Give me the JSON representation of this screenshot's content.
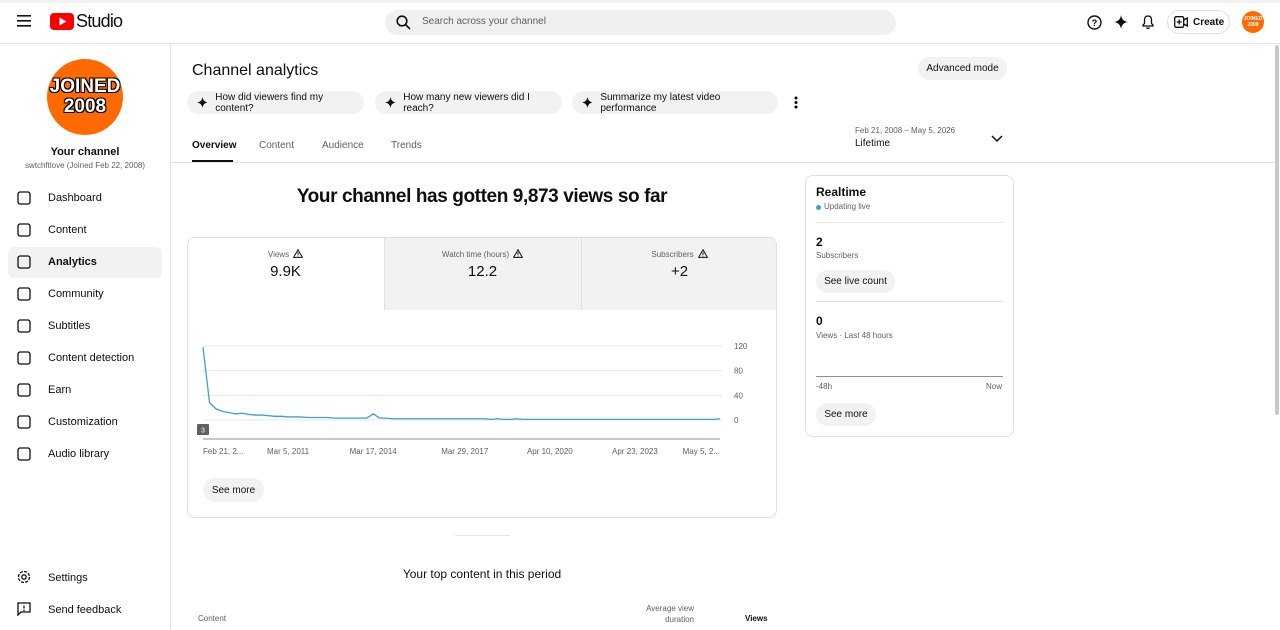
{
  "topbar": {
    "logo": "Studio",
    "search_placeholder": "Search across your channel",
    "create": "Create",
    "avatar_text": [
      "JOINED",
      "2008"
    ]
  },
  "sidebar": {
    "channel_title": "Your channel",
    "channel_handle": "swtchftlove (Joined Feb 22, 2008)",
    "nav": [
      "Dashboard",
      "Content",
      "Analytics",
      "Community",
      "Subtitles",
      "Content detection",
      "Earn",
      "Customization",
      "Audio library"
    ],
    "footer": [
      "Settings",
      "Send feedback"
    ]
  },
  "main": {
    "title": "Channel analytics",
    "advanced_mode": "Advanced mode",
    "chips": [
      "How did viewers find my content?",
      "How many new viewers did I reach?",
      "Summarize my latest video performance"
    ],
    "tabs": [
      "Overview",
      "Content",
      "Audience",
      "Trends"
    ],
    "date_range": "Feb 21, 2008 – May 5, 2026",
    "period": "Lifetime",
    "headline": "Your channel has gotten 9,873 views so far",
    "stats": [
      {
        "label": "Views",
        "value": "9.9K"
      },
      {
        "label": "Watch time (hours)",
        "value": "12.2"
      },
      {
        "label": "Subscribers",
        "value": "+2"
      }
    ],
    "see_more": "See more",
    "top_content": {
      "title": "Your top content in this period",
      "columns": [
        "Content",
        "Average view duration",
        "Views"
      ]
    }
  },
  "realtime": {
    "title": "Realtime",
    "status": "Updating live",
    "subscribers": "2",
    "subscribers_label": "Subscribers",
    "see_live_count": "See live count",
    "views": "0",
    "views_label": "Views · Last 48 hours",
    "axis_start": "-48h",
    "axis_end": "Now",
    "see_more": "See more"
  },
  "chart_data": {
    "type": "line",
    "color": "#3aa3cb",
    "categories": [
      "Feb 21, 2...",
      null,
      null,
      null,
      null,
      null,
      null,
      null,
      null,
      null,
      null,
      null,
      null,
      "Mar 5, 2011",
      null,
      null,
      null,
      null,
      null,
      null,
      null,
      null,
      null,
      null,
      null,
      null,
      "Mar 17, 2014",
      null,
      null,
      null,
      null,
      null,
      null,
      null,
      null,
      null,
      null,
      null,
      null,
      null,
      "Mar 29, 2017",
      null,
      null,
      null,
      null,
      null,
      null,
      null,
      null,
      null,
      null,
      null,
      null,
      "Apr 10, 2020",
      null,
      null,
      null,
      null,
      null,
      null,
      null,
      null,
      null,
      null,
      null,
      null,
      "Apr 23, 2023",
      null,
      null,
      null,
      null,
      null,
      null,
      null,
      null,
      null,
      null,
      null,
      null,
      "May 5, 2..."
    ],
    "values": [
      118,
      28,
      18,
      14,
      12,
      10,
      11,
      9,
      8,
      8,
      7,
      6,
      6,
      5,
      5,
      5,
      4,
      4,
      4,
      4,
      3,
      3,
      3,
      3,
      3,
      3,
      10,
      3,
      3,
      2,
      2,
      2,
      2,
      2,
      2,
      2,
      2,
      2,
      2,
      2,
      2,
      2,
      2,
      2,
      1,
      2,
      1,
      1,
      2,
      1,
      1,
      1,
      1,
      1,
      1,
      1,
      1,
      1,
      1,
      1,
      1,
      1,
      1,
      1,
      1,
      1,
      1,
      1,
      1,
      1,
      1,
      1,
      1,
      1,
      1,
      1,
      1,
      1,
      1,
      2
    ],
    "ylim": [
      0,
      120
    ],
    "yticks": [
      0,
      40,
      80,
      120
    ],
    "grid": true,
    "annotation": "3"
  }
}
